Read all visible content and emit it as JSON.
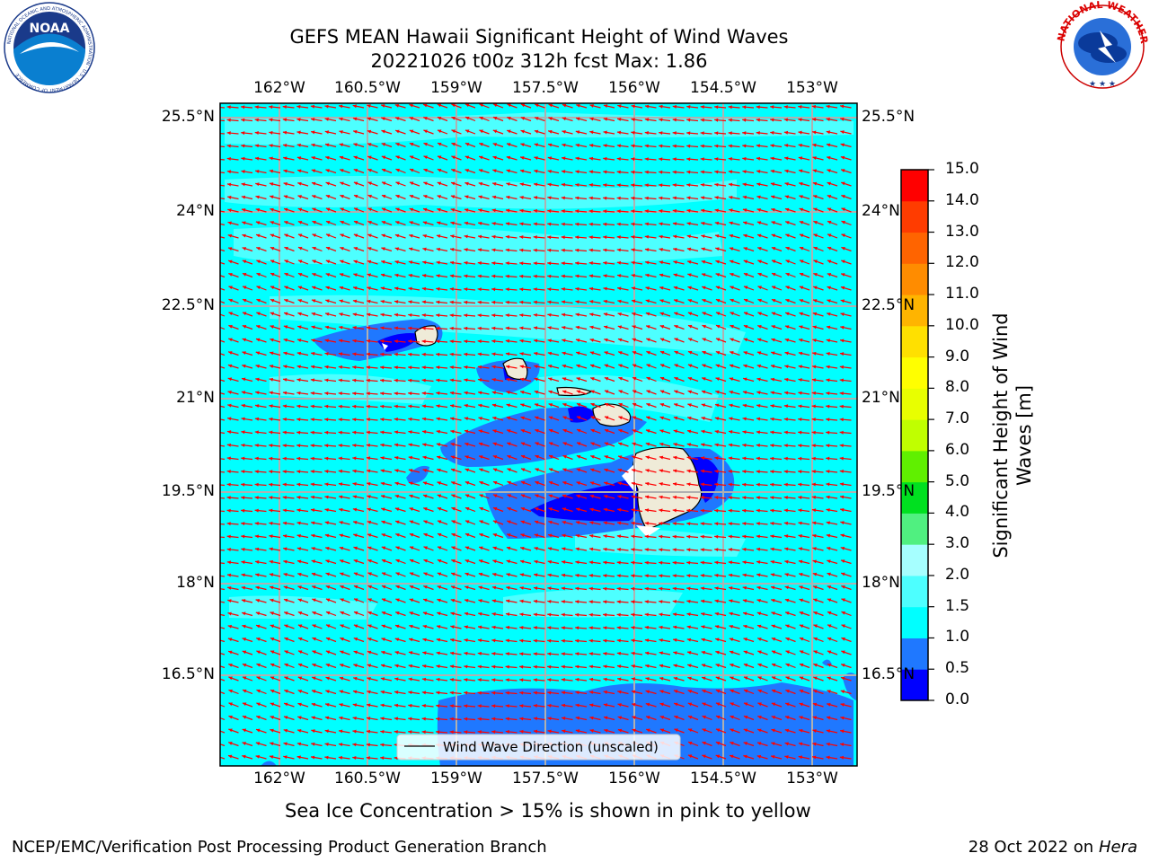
{
  "title": {
    "line1": "GEFS MEAN Hawaii Significant Height of Wind Waves",
    "line2": "20221026 t00z 312h fcst   Max: 1.86"
  },
  "logos": {
    "noaa": {
      "text": "NOAA",
      "ring_text": "NATIONAL OCEANIC AND ATMOSPHERIC ADMINISTRATION · U.S. DEPARTMENT OF COMMERCE"
    },
    "nws": {
      "ring_text": "NATIONAL WEATHER SERVICE"
    }
  },
  "map": {
    "lon_labels": [
      "162°W",
      "160.5°W",
      "159°W",
      "157.5°W",
      "156°W",
      "154.5°W",
      "153°W"
    ],
    "lat_labels": [
      "25.5°N",
      "24°N",
      "22.5°N",
      "21°N",
      "19.5°N",
      "18°N",
      "16.5°N"
    ],
    "legend_label": "Wind Wave Direction (unscaled)",
    "ocean_color": "#00ffff",
    "arrow_color": "#ff0000",
    "land_color": "#efebd8"
  },
  "colorbar": {
    "label_line1": "Significant Height of Wind",
    "label_line2": "Waves [m]",
    "ticks": [
      "0.0",
      "0.5",
      "1.0",
      "1.5",
      "2.0",
      "3.0",
      "4.0",
      "5.0",
      "6.0",
      "7.0",
      "8.0",
      "9.0",
      "10.0",
      "11.0",
      "12.0",
      "13.0",
      "14.0",
      "15.0"
    ],
    "colors": [
      "#0000ff",
      "#1f78ff",
      "#00ffff",
      "#4dffff",
      "#a6ffff",
      "#50f080",
      "#00e020",
      "#60f000",
      "#c0ff00",
      "#e8ff00",
      "#ffff00",
      "#ffe000",
      "#ffb400",
      "#ff8c00",
      "#ff6400",
      "#ff3c00",
      "#ff0000"
    ]
  },
  "footer": {
    "note": "Sea Ice Concentration > 15% is shown in pink to yellow",
    "left": "NCEP/EMC/Verification Post Processing Product Generation Branch",
    "right_prefix": "28 Oct 2022 on ",
    "right_host": "Hera"
  }
}
